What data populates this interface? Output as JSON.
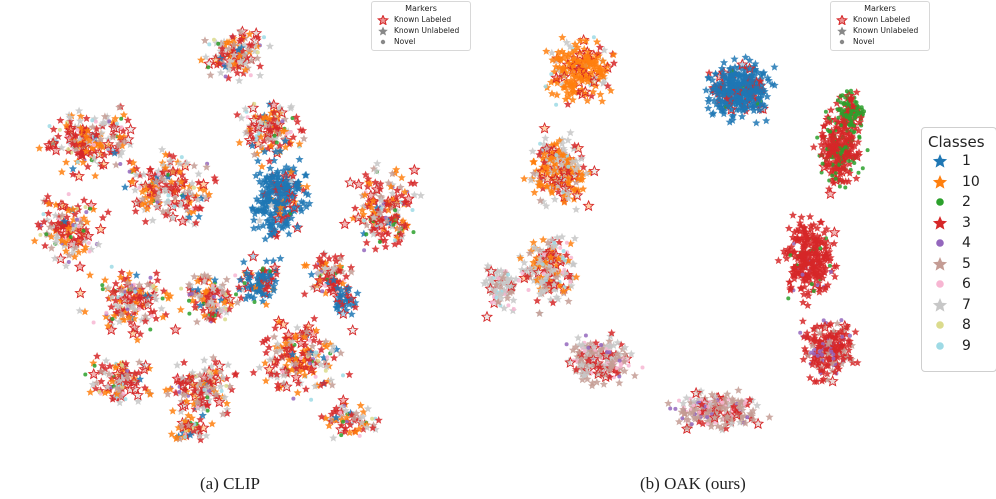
{
  "chart_data": [
    {
      "type": "scatter",
      "title": "(a) CLIP",
      "legend_title": "Markers",
      "markers": [
        {
          "label": "Known Labeled",
          "shape": "star-outlined"
        },
        {
          "label": "Known Unlabeled",
          "shape": "star"
        },
        {
          "label": "Novel",
          "shape": "circle"
        }
      ],
      "legend_position": "top-right",
      "axes": "off"
    },
    {
      "type": "scatter",
      "title": "(b) OAK (ours)",
      "legend_title": "Markers",
      "markers": [
        {
          "label": "Known Labeled",
          "shape": "star-outlined"
        },
        {
          "label": "Known Unlabeled",
          "shape": "star"
        },
        {
          "label": "Novel",
          "shape": "circle"
        }
      ],
      "legend_position": "top-right",
      "axes": "off"
    }
  ],
  "class_legend": {
    "title": "Classes",
    "items": [
      {
        "label": "1",
        "color": "#1f77b4",
        "marker": "star"
      },
      {
        "label": "10",
        "color": "#ff7f0e",
        "marker": "star"
      },
      {
        "label": "2",
        "color": "#2ca02c",
        "marker": "circle"
      },
      {
        "label": "3",
        "color": "#d62728",
        "marker": "star"
      },
      {
        "label": "4",
        "color": "#9467bd",
        "marker": "circle"
      },
      {
        "label": "5",
        "color": "#c49c94",
        "marker": "star"
      },
      {
        "label": "6",
        "color": "#f7b6d2",
        "marker": "circle"
      },
      {
        "label": "7",
        "color": "#c7c7c7",
        "marker": "star"
      },
      {
        "label": "8",
        "color": "#dbdb8d",
        "marker": "circle"
      },
      {
        "label": "9",
        "color": "#9edae5",
        "marker": "circle"
      }
    ]
  }
}
